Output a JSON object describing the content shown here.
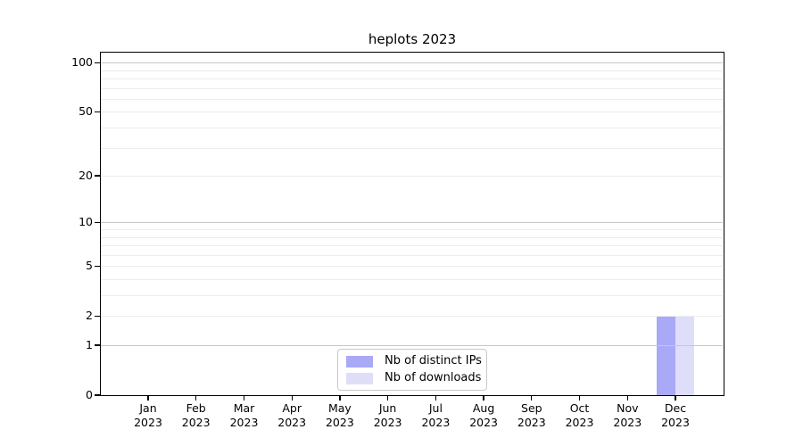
{
  "chart_data": {
    "type": "bar",
    "title": "heplots 2023",
    "xlabel": "",
    "ylabel": "",
    "categories": [
      "Jan 2023",
      "Feb 2023",
      "Mar 2023",
      "Apr 2023",
      "May 2023",
      "Jun 2023",
      "Jul 2023",
      "Aug 2023",
      "Sep 2023",
      "Oct 2023",
      "Nov 2023",
      "Dec 2023"
    ],
    "series": [
      {
        "name": "Nb of distinct IPs",
        "color": "#a9a9f7",
        "values": [
          0,
          0,
          0,
          0,
          0,
          0,
          0,
          0,
          0,
          0,
          0,
          2
        ]
      },
      {
        "name": "Nb of downloads",
        "color": "#dedef9",
        "values": [
          0,
          0,
          0,
          0,
          0,
          0,
          0,
          0,
          0,
          0,
          0,
          2
        ]
      }
    ],
    "yscale": "log1p",
    "ylim": [
      0,
      115
    ],
    "ytick_labels": [
      0,
      1,
      2,
      5,
      10,
      20,
      50,
      100
    ],
    "major_gridlines": [
      1,
      10,
      100
    ],
    "minor_gridlines": [
      2,
      3,
      4,
      5,
      6,
      7,
      8,
      9,
      20,
      30,
      40,
      50,
      60,
      70,
      80,
      90
    ],
    "grid": true,
    "legend_position": "bottom-center"
  },
  "style": {
    "background": "#ffffff",
    "spine": "#000000",
    "major_grid": "#c8c8c8",
    "minor_grid": "#ececec",
    "legend_border": "#c9c9c9",
    "text": "#000000"
  }
}
